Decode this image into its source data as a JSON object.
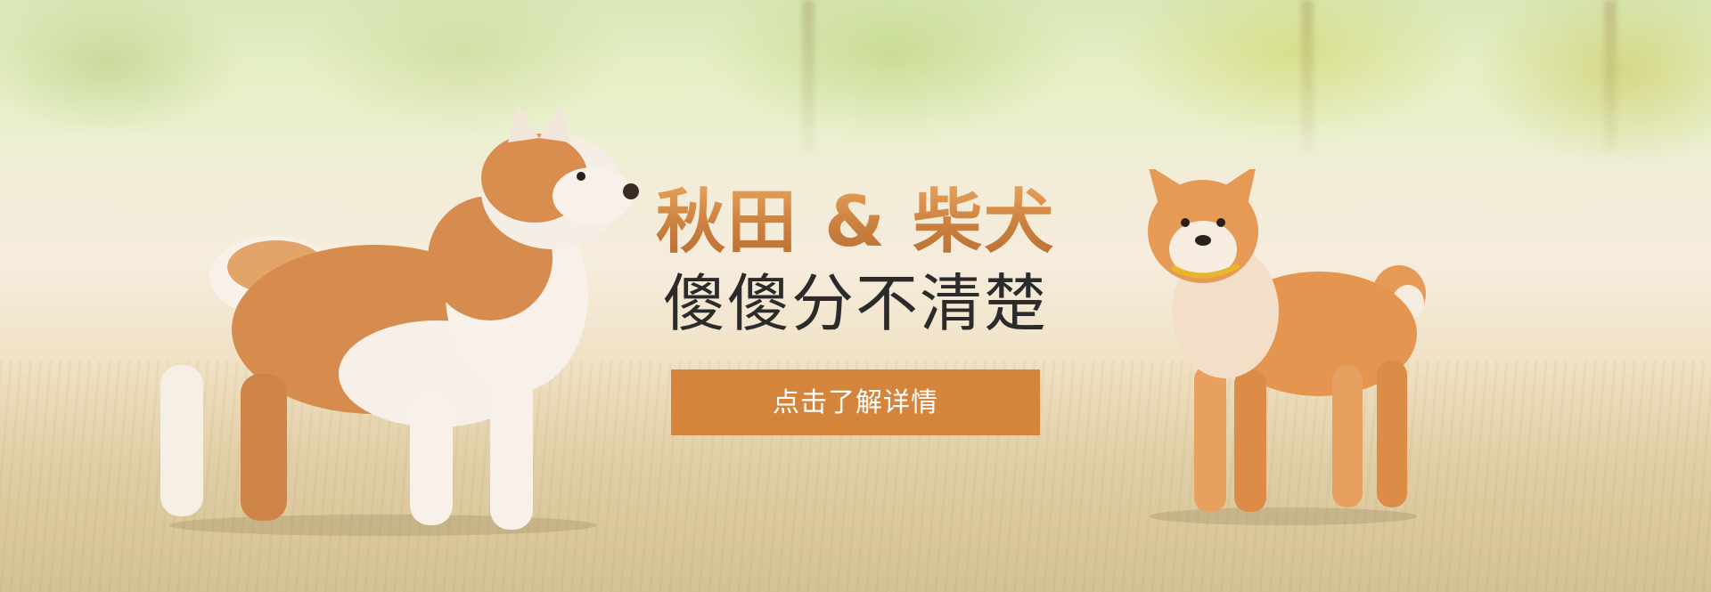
{
  "banner": {
    "headline_line1": "秋田 & 柴犬",
    "headline_line2": "傻傻分不清楚",
    "cta_label": "点击了解详情"
  },
  "images": {
    "left_dog": "akita-puppy",
    "right_dog": "shiba-inu"
  },
  "colors": {
    "accent": "#d5843c",
    "headline_orange": "#c97f3e",
    "headline_dark": "#2b2b2b"
  }
}
